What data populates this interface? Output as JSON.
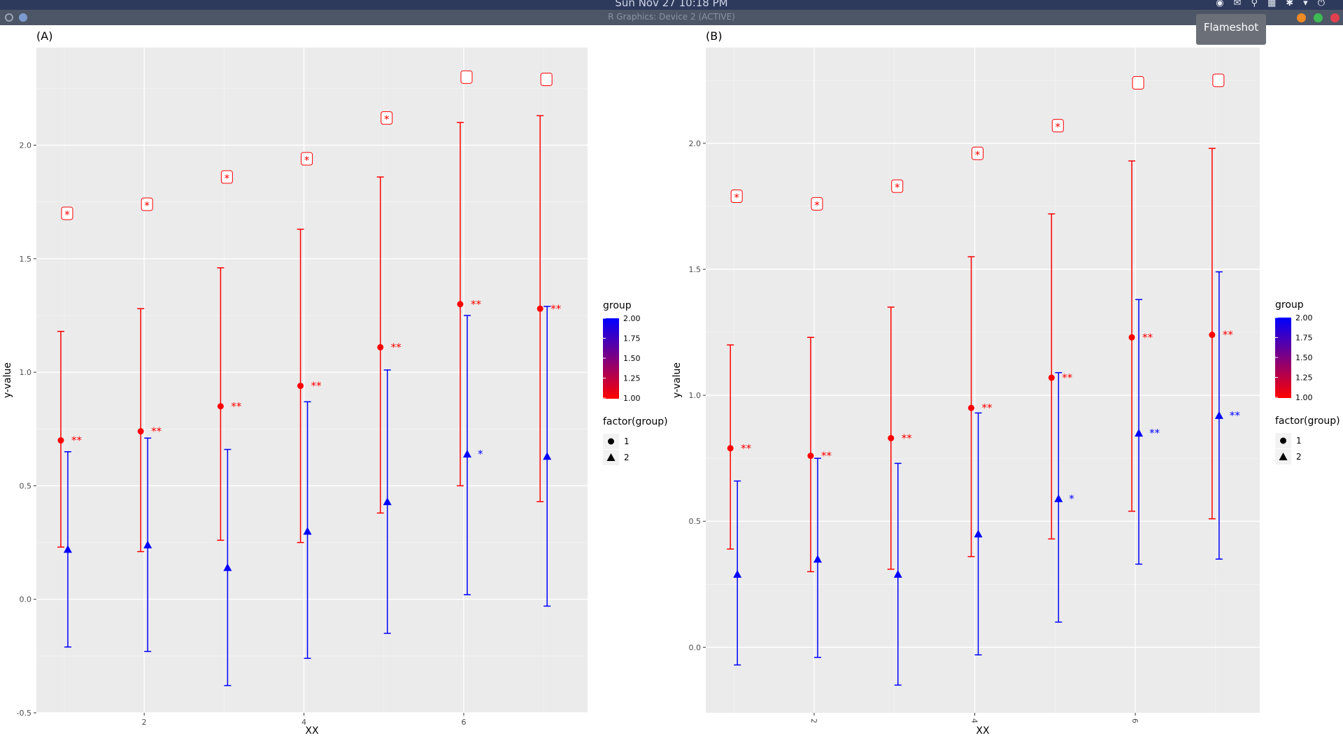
{
  "system": {
    "clock": "Sun  Nov  27   10:18 PM",
    "window_title": "R Graphics: Device 2 (ACTIVE)",
    "tooltip": "Flameshot",
    "colors": {
      "topbar": "#2e3a5c",
      "titlebar": "#4d5666",
      "close": "#e0404f",
      "maximize": "#3cba54",
      "minimize": "#f08a24"
    }
  },
  "chart_data": [
    {
      "type": "scatter",
      "panel_tag": "(A)",
      "xlabel": "XX",
      "ylabel": "y-value",
      "xlim": [
        0.65,
        7.55
      ],
      "ylim": [
        -0.5,
        2.43
      ],
      "x_ticks": [
        2,
        4,
        6
      ],
      "y_ticks": [
        -0.5,
        0.0,
        0.5,
        1.0,
        1.5,
        2.0
      ],
      "y_tick_labels": [
        "-0.5",
        "0.0",
        "0.5",
        "1.0",
        "1.5",
        "2.0"
      ],
      "x_tick_rotation": 0,
      "grid": true,
      "legend_position": "right",
      "series": [
        {
          "group": 1,
          "color": "#ff0000",
          "shape": "circle",
          "x": [
            1,
            2,
            3,
            4,
            5,
            6,
            7
          ],
          "y": [
            0.7,
            0.74,
            0.85,
            0.94,
            1.11,
            1.3,
            1.28
          ],
          "ymin": [
            0.23,
            0.21,
            0.26,
            0.25,
            0.38,
            0.5,
            0.43
          ],
          "ymax": [
            1.18,
            1.28,
            1.46,
            1.63,
            1.86,
            2.1,
            2.13
          ],
          "labels": [
            "**",
            "**",
            "**",
            "**",
            "**",
            "**",
            "**"
          ]
        },
        {
          "group": 2,
          "color": "#0000ff",
          "shape": "triangle",
          "x": [
            1,
            2,
            3,
            4,
            5,
            6,
            7
          ],
          "y": [
            0.22,
            0.24,
            0.14,
            0.3,
            0.43,
            0.64,
            0.63
          ],
          "ymin": [
            -0.21,
            -0.23,
            -0.38,
            -0.26,
            -0.15,
            0.02,
            -0.03
          ],
          "ymax": [
            0.65,
            0.71,
            0.66,
            0.87,
            1.01,
            1.25,
            1.29
          ],
          "labels": [
            "",
            "",
            "",
            "",
            "",
            "*",
            ""
          ]
        }
      ],
      "boxed_labels": {
        "x": [
          1,
          2,
          3,
          4,
          5,
          6,
          7
        ],
        "y": [
          1.7,
          1.74,
          1.86,
          1.94,
          2.12,
          2.3,
          2.29
        ],
        "text": [
          "*",
          "*",
          "*",
          "*",
          "*",
          "",
          ""
        ]
      },
      "legend": {
        "color_title": "group",
        "color_ticks": [
          "2.00",
          "1.75",
          "1.50",
          "1.25",
          "1.00"
        ],
        "color_low": "#ff0000",
        "color_high": "#0000ff",
        "shape_title": "factor(group)",
        "shape_items": [
          "1",
          "2"
        ]
      }
    },
    {
      "type": "scatter",
      "panel_tag": "(B)",
      "xlabel": "XX",
      "ylabel": "y-value",
      "xlim": [
        0.65,
        7.55
      ],
      "ylim": [
        -0.26,
        2.38
      ],
      "x_ticks": [
        2,
        4,
        6
      ],
      "y_ticks": [
        0.0,
        0.5,
        1.0,
        1.5,
        2.0
      ],
      "y_tick_labels": [
        "0.0",
        "0.5",
        "1.0",
        "1.5",
        "2.0"
      ],
      "x_tick_rotation": 90,
      "grid": true,
      "legend_position": "right",
      "series": [
        {
          "group": 1,
          "color": "#ff0000",
          "shape": "circle",
          "x": [
            1,
            2,
            3,
            4,
            5,
            6,
            7
          ],
          "y": [
            0.79,
            0.76,
            0.83,
            0.95,
            1.07,
            1.23,
            1.24
          ],
          "ymin": [
            0.39,
            0.3,
            0.31,
            0.36,
            0.43,
            0.54,
            0.51
          ],
          "ymax": [
            1.2,
            1.23,
            1.35,
            1.55,
            1.72,
            1.93,
            1.98
          ],
          "labels": [
            "**",
            "**",
            "**",
            "**",
            "**",
            "**",
            "**"
          ]
        },
        {
          "group": 2,
          "color": "#0000ff",
          "shape": "triangle",
          "x": [
            1,
            2,
            3,
            4,
            5,
            6,
            7
          ],
          "y": [
            0.29,
            0.35,
            0.29,
            0.45,
            0.59,
            0.85,
            0.92
          ],
          "ymin": [
            -0.07,
            -0.04,
            -0.15,
            -0.03,
            0.1,
            0.33,
            0.35
          ],
          "ymax": [
            0.66,
            0.75,
            0.73,
            0.93,
            1.09,
            1.38,
            1.49
          ],
          "labels": [
            "",
            "",
            "",
            "",
            "*",
            "**",
            "**"
          ]
        }
      ],
      "boxed_labels": {
        "x": [
          1,
          2,
          3,
          4,
          5,
          6,
          7
        ],
        "y": [
          1.79,
          1.76,
          1.83,
          1.96,
          2.07,
          2.24,
          2.25
        ],
        "text": [
          "*",
          "*",
          "*",
          "*",
          "*",
          "",
          ""
        ]
      },
      "legend": {
        "color_title": "group",
        "color_ticks": [
          "2.00",
          "1.75",
          "1.50",
          "1.25",
          "1.00"
        ],
        "color_low": "#ff0000",
        "color_high": "#0000ff",
        "shape_title": "factor(group)",
        "shape_items": [
          "1",
          "2"
        ]
      }
    }
  ]
}
